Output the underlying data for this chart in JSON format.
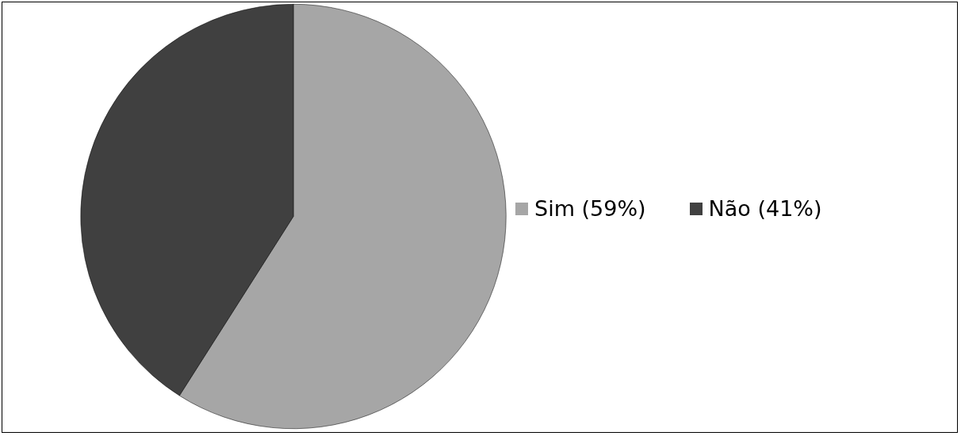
{
  "chart_data": {
    "type": "pie",
    "categories": [
      "Sim (59%)",
      "Não (41%)"
    ],
    "values": [
      59,
      41
    ],
    "colors": [
      "#a6a6a6",
      "#404040"
    ],
    "legend": "right"
  }
}
